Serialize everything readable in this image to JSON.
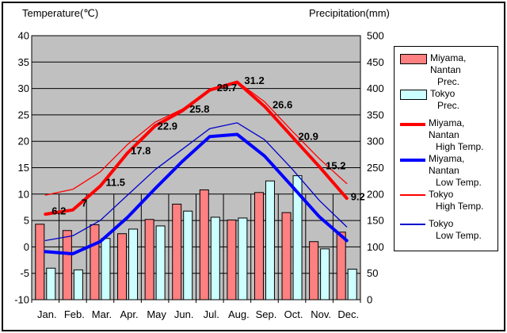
{
  "titles": {
    "temperature_axis": "Temperature(℃)",
    "precipitation_axis": "Precipitation(mm)"
  },
  "colors": {
    "plot_background": "#C0C0C0",
    "gridline": "#000000",
    "miyama_prec_bar": "#FF8080",
    "tokyo_prec_bar": "#CCFFFF",
    "miyama_high_line": "#FF0000",
    "miyama_low_line": "#0000FF",
    "tokyo_high_line": "#FF0000",
    "tokyo_low_line": "#0000CC",
    "label_text": "#000000"
  },
  "legend": {
    "position": "right",
    "items": [
      {
        "swatch": "miyama-prec-swatch",
        "line1": "Miyama, Nantan",
        "line2": "Prec."
      },
      {
        "swatch": "tokyo-prec-swatch",
        "line1": "Tokyo",
        "line2": "Prec."
      },
      {
        "swatch": "miyama-high-swatch",
        "line1": "Miyama, Nantan",
        "line2": "High Temp."
      },
      {
        "swatch": "miyama-low-swatch",
        "line1": "Miyama, Nantan",
        "line2": "Low Temp."
      },
      {
        "swatch": "tokyo-high-swatch",
        "line1": "Tokyo",
        "line2": "High Temp."
      },
      {
        "swatch": "tokyo-low-swatch",
        "line1": "Tokyo",
        "line2": "Low Temp."
      }
    ]
  },
  "chart_data": {
    "type": "combo-bar-line",
    "categories": [
      "Jan.",
      "Feb.",
      "Mar.",
      "Apr.",
      "May",
      "Jun.",
      "Jul.",
      "Aug.",
      "Sep.",
      "Oct.",
      "Nov.",
      "Dec."
    ],
    "temp_axis": {
      "title": "Temperature(℃)",
      "min": -10,
      "max": 40,
      "ticks": [
        40,
        35,
        30,
        25,
        20,
        15,
        10,
        5,
        0,
        -5,
        -10
      ]
    },
    "precip_axis": {
      "title": "Precipitation(mm)",
      "min": 0,
      "max": 500,
      "ticks": [
        500,
        450,
        400,
        350,
        300,
        250,
        200,
        150,
        100,
        50,
        0
      ]
    },
    "grid": true,
    "plot_bg": "#C0C0C0",
    "series": [
      {
        "name": "Miyama, Nantan Prec.",
        "type": "bar",
        "axis": "precip",
        "color": "#FF8080",
        "values": [
          143,
          131,
          142,
          125,
          152,
          181,
          208,
          151,
          203,
          165,
          110,
          128
        ]
      },
      {
        "name": "Tokyo Prec.",
        "type": "bar",
        "axis": "precip",
        "color": "#CCFFFF",
        "values": [
          59.7,
          56.5,
          116.0,
          133.7,
          139.7,
          167.8,
          156.2,
          154.7,
          224.9,
          234.8,
          96.3,
          57.9
        ]
      },
      {
        "name": "Miyama, Nantan High Temp.",
        "type": "line",
        "axis": "temp",
        "color": "#FF0000",
        "thickness": "thick",
        "point_labels": true,
        "values": [
          6.2,
          7,
          11.5,
          17.8,
          22.9,
          25.8,
          29.7,
          31.2,
          26.6,
          20.9,
          15.2,
          9.2
        ]
      },
      {
        "name": "Miyama, Nantan Low Temp.",
        "type": "line",
        "axis": "temp",
        "color": "#0000FF",
        "thickness": "thick",
        "values": [
          -0.9,
          -1.3,
          1.0,
          5.6,
          11.0,
          16.2,
          20.9,
          21.3,
          17.2,
          11.5,
          5.7,
          1.2
        ]
      },
      {
        "name": "Tokyo High Temp.",
        "type": "line",
        "axis": "temp",
        "color": "#FF0000",
        "thickness": "thin",
        "values": [
          9.8,
          10.9,
          14.2,
          19.4,
          23.6,
          26.1,
          29.9,
          31.3,
          27.5,
          22.0,
          16.7,
          12.0
        ]
      },
      {
        "name": "Tokyo Low Temp.",
        "type": "line",
        "axis": "temp",
        "color": "#0000CC",
        "thickness": "thin",
        "values": [
          1.2,
          2.1,
          5.0,
          9.8,
          14.6,
          18.5,
          22.4,
          23.5,
          20.3,
          14.8,
          8.8,
          3.8
        ]
      }
    ],
    "point_label_values": [
      "6.2",
      "7",
      "11.5",
      "17.8",
      "22.9",
      "25.8",
      "29.7",
      "31.2",
      "26.6",
      "20.9",
      "15.2",
      "9.2"
    ]
  }
}
